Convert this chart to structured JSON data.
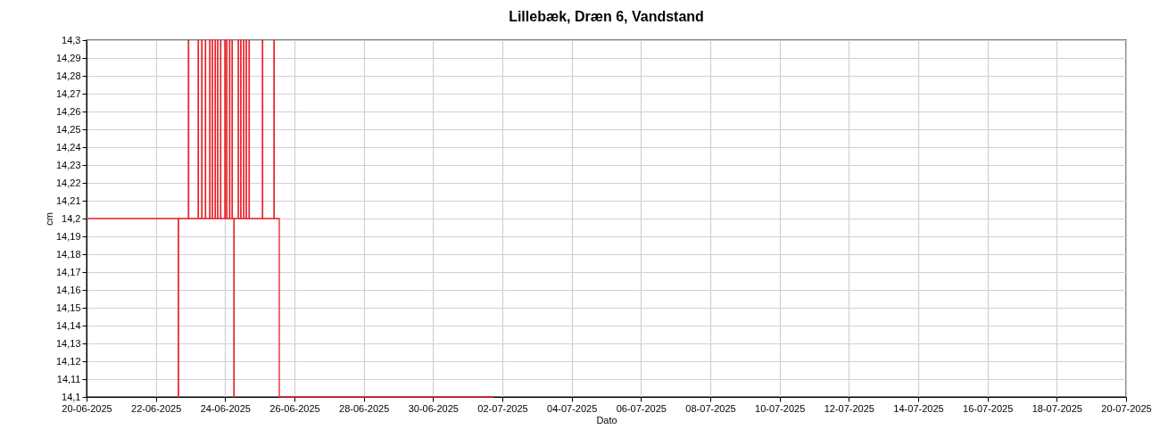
{
  "chart_data": {
    "type": "step",
    "title": "Lillebæk, Dræn 6, Vandstand",
    "xlabel": "Dato",
    "ylabel": "cm",
    "x": [
      "2025-06-20T00:00",
      "2025-06-22T15:30",
      "2025-06-22T15:45",
      "2025-06-22T22:30",
      "2025-06-22T22:45",
      "2025-06-23T05:15",
      "2025-06-23T05:30",
      "2025-06-23T07:45",
      "2025-06-23T08:00",
      "2025-06-23T10:15",
      "2025-06-23T10:30",
      "2025-06-23T13:15",
      "2025-06-23T13:30",
      "2025-06-23T15:00",
      "2025-06-23T15:15",
      "2025-06-23T17:00",
      "2025-06-23T17:15",
      "2025-06-23T18:45",
      "2025-06-23T19:00",
      "2025-06-23T20:45",
      "2025-06-23T21:00",
      "2025-06-23T23:45",
      "2025-06-24T00:00",
      "2025-06-24T01:00",
      "2025-06-24T01:15",
      "2025-06-24T03:00",
      "2025-06-24T03:15",
      "2025-06-24T04:45",
      "2025-06-24T05:00",
      "2025-06-24T06:00",
      "2025-06-24T06:15",
      "2025-06-24T09:00",
      "2025-06-24T09:15",
      "2025-06-24T10:45",
      "2025-06-24T11:00",
      "2025-06-24T12:45",
      "2025-06-24T13:00",
      "2025-06-24T14:30",
      "2025-06-24T14:45",
      "2025-06-24T16:30",
      "2025-06-24T16:45",
      "2025-06-25T01:45",
      "2025-06-25T02:00",
      "2025-06-25T09:45",
      "2025-06-25T10:00",
      "2025-06-25T13:30",
      "2025-07-01T17:45"
    ],
    "series": [
      {
        "color": "#e8202a",
        "values": [
          14.2,
          14.1,
          14.2,
          14.3,
          14.2,
          14.3,
          14.2,
          14.3,
          14.2,
          14.3,
          14.2,
          14.3,
          14.2,
          14.3,
          14.2,
          14.3,
          14.2,
          14.3,
          14.2,
          14.3,
          14.2,
          14.3,
          14.2,
          14.3,
          14.2,
          14.3,
          14.2,
          14.3,
          14.2,
          14.1,
          14.2,
          14.3,
          14.2,
          14.3,
          14.2,
          14.3,
          14.2,
          14.3,
          14.2,
          14.3,
          14.2,
          14.3,
          14.2,
          14.3,
          14.2,
          14.1,
          14.1
        ]
      }
    ],
    "xlim": [
      "2025-06-20",
      "2025-07-20"
    ],
    "xticks": [
      {
        "value": "2025-06-20",
        "label": "20-06-2025"
      },
      {
        "value": "2025-06-22",
        "label": "22-06-2025"
      },
      {
        "value": "2025-06-24",
        "label": "24-06-2025"
      },
      {
        "value": "2025-06-26",
        "label": "26-06-2025"
      },
      {
        "value": "2025-06-28",
        "label": "28-06-2025"
      },
      {
        "value": "2025-06-30",
        "label": "30-06-2025"
      },
      {
        "value": "2025-07-02",
        "label": "02-07-2025"
      },
      {
        "value": "2025-07-04",
        "label": "04-07-2025"
      },
      {
        "value": "2025-07-06",
        "label": "06-07-2025"
      },
      {
        "value": "2025-07-08",
        "label": "08-07-2025"
      },
      {
        "value": "2025-07-10",
        "label": "10-07-2025"
      },
      {
        "value": "2025-07-12",
        "label": "12-07-2025"
      },
      {
        "value": "2025-07-14",
        "label": "14-07-2025"
      },
      {
        "value": "2025-07-16",
        "label": "16-07-2025"
      },
      {
        "value": "2025-07-18",
        "label": "18-07-2025"
      },
      {
        "value": "2025-07-20",
        "label": "20-07-2025"
      }
    ],
    "ylim": [
      14.1,
      14.3
    ],
    "yticks": [
      {
        "value": 14.1,
        "label": "14,1"
      },
      {
        "value": 14.11,
        "label": "14,11"
      },
      {
        "value": 14.12,
        "label": "14,12"
      },
      {
        "value": 14.13,
        "label": "14,13"
      },
      {
        "value": 14.14,
        "label": "14,14"
      },
      {
        "value": 14.15,
        "label": "14,15"
      },
      {
        "value": 14.16,
        "label": "14,16"
      },
      {
        "value": 14.17,
        "label": "14,17"
      },
      {
        "value": 14.18,
        "label": "14,18"
      },
      {
        "value": 14.19,
        "label": "14,19"
      },
      {
        "value": 14.2,
        "label": "14,2"
      },
      {
        "value": 14.21,
        "label": "14,21"
      },
      {
        "value": 14.22,
        "label": "14,22"
      },
      {
        "value": 14.23,
        "label": "14,23"
      },
      {
        "value": 14.24,
        "label": "14,24"
      },
      {
        "value": 14.25,
        "label": "14,25"
      },
      {
        "value": 14.26,
        "label": "14,26"
      },
      {
        "value": 14.27,
        "label": "14,27"
      },
      {
        "value": 14.28,
        "label": "14,28"
      },
      {
        "value": 14.29,
        "label": "14,29"
      },
      {
        "value": 14.3,
        "label": "14,3"
      }
    ],
    "grid": true,
    "marker": "none",
    "line_style": "solid"
  }
}
